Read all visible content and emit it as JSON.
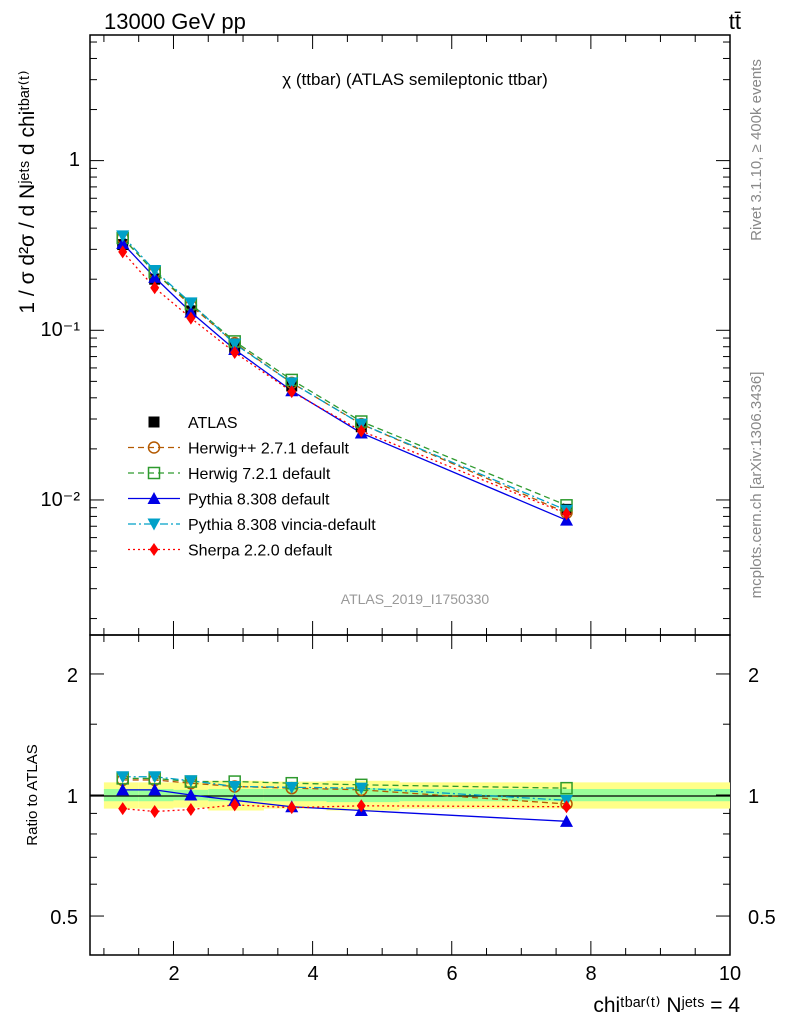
{
  "header": {
    "energy_label": "13000 GeV pp",
    "process_label": "tt̄",
    "plot_title": "χ (ttbar) (ATLAS semileptonic ttbar)",
    "analysis_id": "ATLAS_2019_I1750330",
    "rivet_label": "Rivet 3.1.10, ≥ 400k events",
    "mcplots_label": "mcplots.cern.ch [arXiv:1306.3436]"
  },
  "axes": {
    "ylabel_main": "1 / σ d²σ / d Nʲᵉᵗˢ d chiᵗᵇᵃʳ⁽ᵗ⁾",
    "ylabel_ratio": "Ratio to ATLAS",
    "xlabel": "chiᵗᵇᵃʳ⁽ᵗ⁾ Nʲᵉᵗˢ = 4",
    "main_y_ticks": [
      "10⁻²",
      "10⁻¹",
      "1"
    ],
    "ratio_y_ticks": [
      "0.5",
      "1",
      "2"
    ],
    "x_ticks": [
      "2",
      "4",
      "6",
      "8",
      "10"
    ]
  },
  "chart_data": [
    {
      "type": "line",
      "panel": "main",
      "yscale": "log",
      "xlim": [
        0.8,
        10.0
      ],
      "ylim": [
        0.0016,
        5.5
      ],
      "x": [
        1.27,
        1.73,
        2.25,
        2.88,
        3.7,
        4.7,
        7.65
      ],
      "series": [
        {
          "name": "ATLAS",
          "color": "#000000",
          "marker": "square-filled",
          "line": "none",
          "values": [
            0.32,
            0.2,
            0.13,
            0.079,
            0.047,
            0.027,
            0.0088
          ]
        },
        {
          "name": "Herwig++ 2.7.1 default",
          "color": "#b35900",
          "marker": "circle-open",
          "line": "dashed",
          "values": [
            0.35,
            0.22,
            0.14,
            0.084,
            0.049,
            0.028,
            0.0084
          ]
        },
        {
          "name": "Herwig 7.2.1 default",
          "color": "#2e9a2e",
          "marker": "square-open",
          "line": "dashed",
          "values": [
            0.35,
            0.22,
            0.143,
            0.086,
            0.051,
            0.029,
            0.0093
          ]
        },
        {
          "name": "Pythia 8.308 default",
          "color": "#0000e6",
          "marker": "triangle-up",
          "line": "solid",
          "values": [
            0.325,
            0.205,
            0.128,
            0.077,
            0.044,
            0.0248,
            0.0076
          ]
        },
        {
          "name": "Pythia 8.308 vincia-default",
          "color": "#00a0c8",
          "marker": "triangle-down",
          "line": "dashdot",
          "values": [
            0.36,
            0.225,
            0.145,
            0.083,
            0.049,
            0.028,
            0.0087
          ]
        },
        {
          "name": "Sherpa 2.2.0 default",
          "color": "#ff0000",
          "marker": "diamond",
          "line": "dotted",
          "values": [
            0.29,
            0.178,
            0.118,
            0.074,
            0.0435,
            0.0255,
            0.0083
          ]
        }
      ]
    },
    {
      "type": "line",
      "panel": "ratio",
      "yscale": "log",
      "ylim": [
        0.4,
        2.5
      ],
      "x": [
        1.27,
        1.73,
        2.25,
        2.88,
        3.7,
        4.7,
        7.65
      ],
      "series": [
        {
          "name": "Herwig++ 2.7.1 default",
          "color": "#b35900",
          "marker": "circle-open",
          "line": "dashed",
          "values": [
            1.09,
            1.09,
            1.07,
            1.05,
            1.04,
            1.03,
            0.95
          ]
        },
        {
          "name": "Herwig 7.2.1 default",
          "color": "#2e9a2e",
          "marker": "square-open",
          "line": "dashed",
          "values": [
            1.1,
            1.1,
            1.08,
            1.08,
            1.07,
            1.06,
            1.04
          ]
        },
        {
          "name": "Pythia 8.308 default",
          "color": "#0000e6",
          "marker": "triangle-up",
          "line": "solid",
          "values": [
            1.03,
            1.03,
            1.0,
            0.97,
            0.935,
            0.915,
            0.86
          ]
        },
        {
          "name": "Pythia 8.308 vincia-default",
          "color": "#00a0c8",
          "marker": "triangle-down",
          "line": "dashdot",
          "values": [
            1.11,
            1.11,
            1.085,
            1.05,
            1.045,
            1.04,
            0.97
          ]
        },
        {
          "name": "Sherpa 2.2.0 default",
          "color": "#ff0000",
          "marker": "diamond",
          "line": "dotted",
          "values": [
            0.925,
            0.91,
            0.92,
            0.945,
            0.93,
            0.94,
            0.935
          ]
        }
      ],
      "bands": {
        "x_edges": [
          1.0,
          1.5,
          2.0,
          2.5,
          3.3,
          4.2,
          5.25,
          10.0
        ],
        "stat_color": "#99ff99",
        "total_color": "#ffff88",
        "stat_low": [
          0.965,
          0.965,
          0.97,
          0.965,
          0.965,
          0.96,
          0.965
        ],
        "stat_high": [
          1.035,
          1.035,
          1.03,
          1.035,
          1.035,
          1.04,
          1.035
        ],
        "total_low": [
          0.925,
          0.925,
          0.93,
          0.915,
          0.925,
          0.915,
          0.925
        ],
        "total_high": [
          1.075,
          1.075,
          1.075,
          1.085,
          1.08,
          1.085,
          1.075
        ]
      }
    }
  ]
}
